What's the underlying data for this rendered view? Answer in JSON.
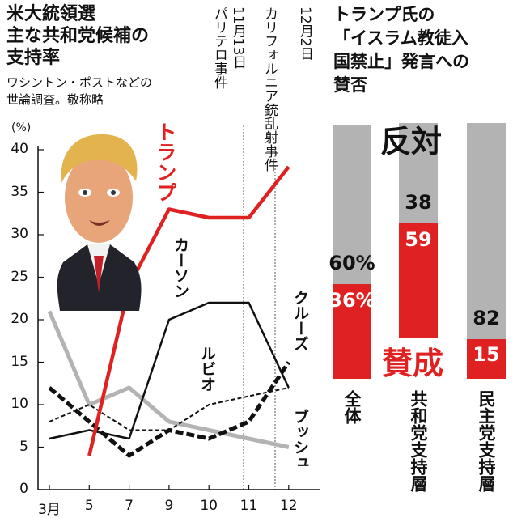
{
  "left_title": [
    "米大統領選",
    "主な共和党候補の",
    "支持率"
  ],
  "left_subtitle": [
    "ワシントン・ポストなどの",
    "世論調査。敬称略"
  ],
  "right_title": [
    "トランプ氏の",
    "「イスラム教徒入",
    "国禁止」発言への",
    "賛否"
  ],
  "events": [
    {
      "date": "11月13日",
      "label": "パリテロ事件"
    },
    {
      "date": "12月2日",
      "label": "カリフォルニア銃乱射事件"
    }
  ],
  "colors": {
    "trump": "#e02121",
    "black": "#111111",
    "bush": "#b3b3b3",
    "oppose": "#b3b3b3",
    "support": "#e02121"
  },
  "chart_data": [
    {
      "type": "line",
      "title": "米大統領選 主な共和党候補の支持率",
      "y_unit": "(%)",
      "ylim": [
        0,
        40
      ],
      "y_ticks": [
        "0",
        "5",
        "10",
        "15",
        "20",
        "25",
        "30",
        "35",
        "40"
      ],
      "x_ticks": [
        "3月",
        "5",
        "7",
        "9",
        "10",
        "11",
        "12"
      ],
      "grid": false,
      "series": [
        {
          "name": "トランプ",
          "color": "#e02121",
          "style": "solid",
          "points": [
            [
              1,
              4
            ],
            [
              2,
              24
            ],
            [
              3,
              33
            ],
            [
              4,
              32
            ],
            [
              5,
              32
            ],
            [
              6,
              38
            ]
          ]
        },
        {
          "name": "カーソン",
          "color": "#111111",
          "style": "solid",
          "points": [
            [
              0,
              6
            ],
            [
              1,
              7
            ],
            [
              2,
              6
            ],
            [
              3,
              20
            ],
            [
              4,
              22
            ],
            [
              5,
              22
            ],
            [
              6,
              12
            ]
          ]
        },
        {
          "name": "ルビオ",
          "color": "#111111",
          "style": "dashed",
          "points": [
            [
              0,
              8
            ],
            [
              1,
              10
            ],
            [
              2,
              7
            ],
            [
              3,
              7
            ],
            [
              4,
              10
            ],
            [
              5,
              11
            ],
            [
              6,
              12
            ]
          ]
        },
        {
          "name": "クルーズ",
          "color": "#111111",
          "style": "bold-dashed",
          "points": [
            [
              0,
              12
            ],
            [
              1,
              8
            ],
            [
              2,
              4
            ],
            [
              3,
              7
            ],
            [
              4,
              6
            ],
            [
              5,
              8
            ],
            [
              6,
              15
            ]
          ]
        },
        {
          "name": "ブッシュ",
          "color": "#b3b3b3",
          "style": "solid",
          "points": [
            [
              0,
              21
            ],
            [
              1,
              10
            ],
            [
              2,
              12
            ],
            [
              3,
              8
            ],
            [
              4,
              7
            ],
            [
              5,
              6
            ],
            [
              6,
              5
            ]
          ]
        }
      ]
    },
    {
      "type": "bar",
      "title": "トランプ氏の「イスラム教徒入国禁止」発言への賛否",
      "categories": [
        "全体",
        "共和党支持層",
        "民主党支持層"
      ],
      "series": [
        {
          "name": "反対",
          "color": "#b3b3b3",
          "values": [
            60,
            38,
            82
          ]
        },
        {
          "name": "賛成",
          "color": "#e02121",
          "values": [
            36,
            59,
            15
          ]
        }
      ],
      "value_labels": [
        [
          "60%",
          "38",
          "82"
        ],
        [
          "36%",
          "59",
          "15"
        ]
      ]
    }
  ]
}
